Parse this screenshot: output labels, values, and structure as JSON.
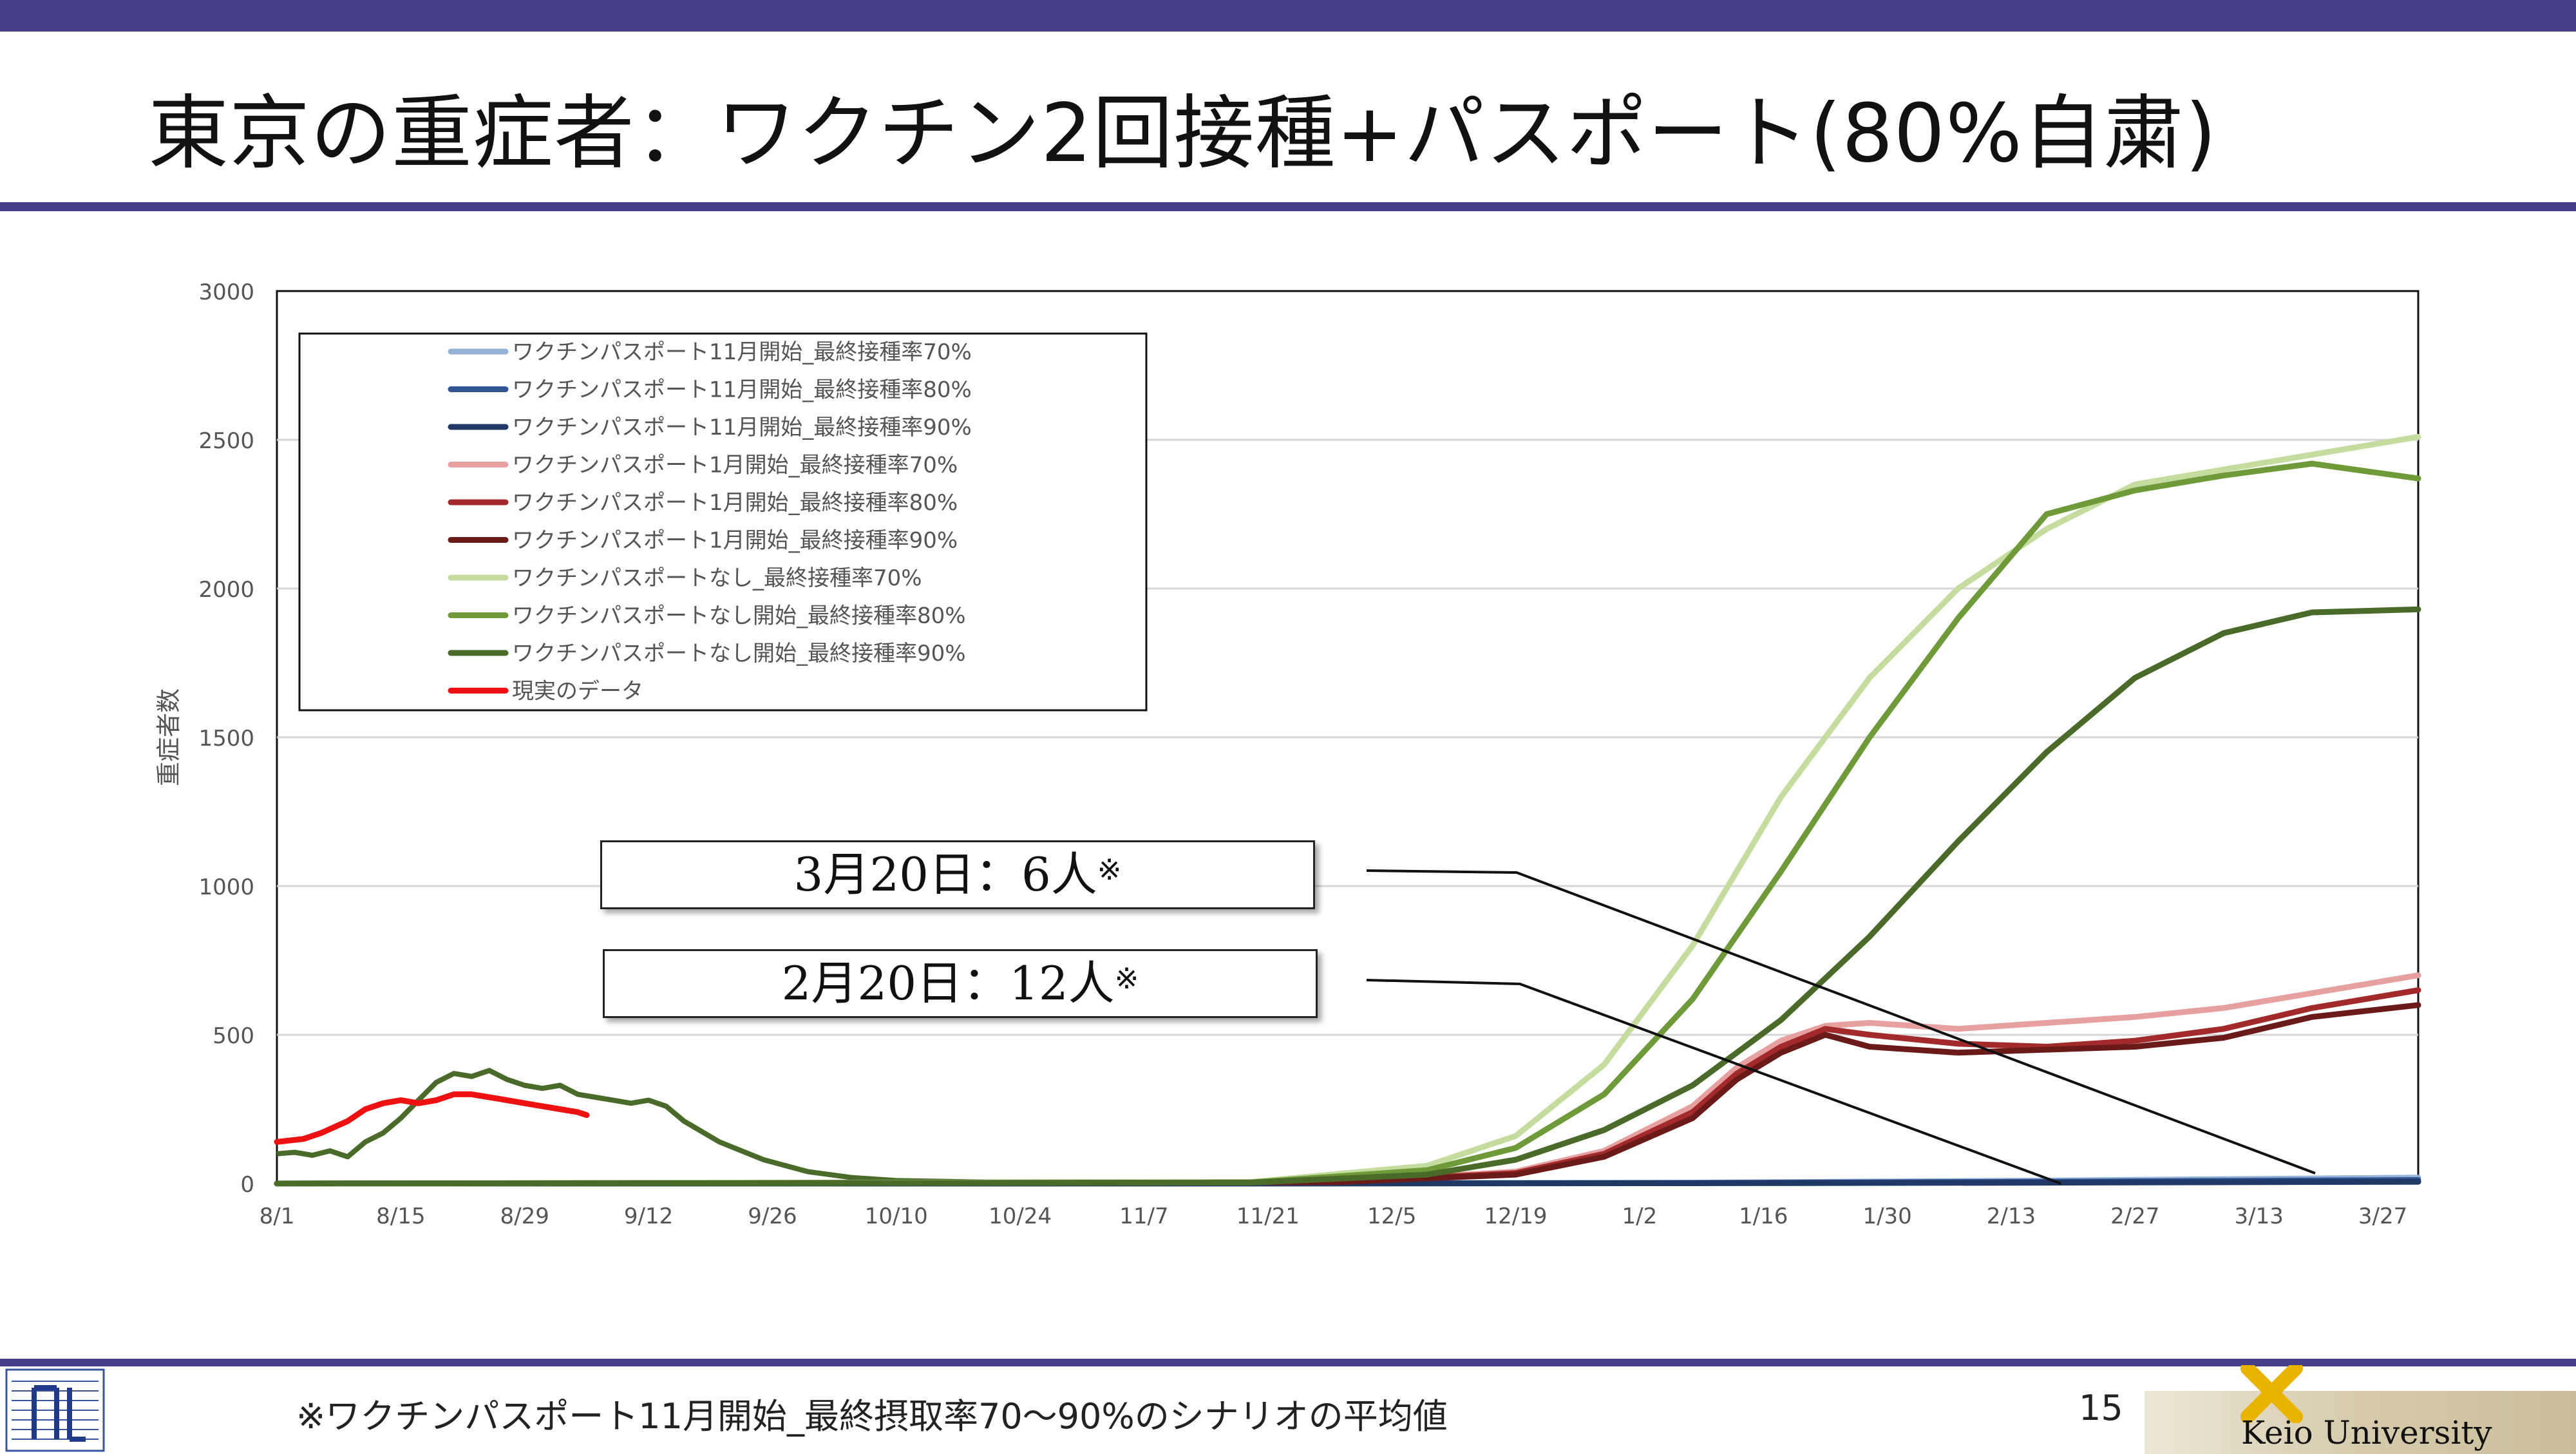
{
  "slide": {
    "title": "東京の重症者：ワクチン2回接種+パスポート(80%自粛)",
    "footnote": "※ワクチンパスポート11月開始_最終摂取率70～90%のシナリオの平均値",
    "page_number": "15",
    "university": "Keio University"
  },
  "annotations": [
    {
      "date_label": "3月20日：",
      "count_label": "6人",
      "mark": "※"
    },
    {
      "date_label": "2月20日：",
      "count_label": "12人",
      "mark": "※"
    }
  ],
  "chart_data": {
    "type": "line",
    "ylabel": "重症者数",
    "ylim": [
      0,
      3000
    ],
    "yticks": [
      0,
      500,
      1000,
      1500,
      2000,
      2500,
      3000
    ],
    "xticks": [
      "8/1",
      "8/15",
      "8/29",
      "9/12",
      "9/26",
      "10/10",
      "10/24",
      "11/7",
      "11/21",
      "12/5",
      "12/19",
      "1/2",
      "1/16",
      "1/30",
      "2/13",
      "2/27",
      "3/13",
      "3/27"
    ],
    "x_range_days": [
      0,
      242
    ],
    "grid": "horizontal",
    "legend_position": "top-left",
    "colors": {
      "blue_light": "#95b3d7",
      "blue_mid": "#2f5597",
      "blue_dark": "#1f3864",
      "red_light": "#e6a0a0",
      "red_mid": "#a32a2a",
      "red_dark": "#6b1a1a",
      "green_light": "#c4dc9e",
      "green_mid": "#6f9a3a",
      "green_dark": "#4a6a2a",
      "actual": "#ee1111"
    },
    "series": [
      {
        "name": "ワクチンパスポート11月開始_最終接種率70%",
        "color": "#95b3d7",
        "style": "solid",
        "x": [
          0,
          60,
          100,
          160,
          200,
          242
        ],
        "y": [
          0,
          0,
          0,
          3,
          10,
          20
        ]
      },
      {
        "name": "ワクチンパスポート11月開始_最終接種率80%",
        "color": "#2f5597",
        "style": "solid",
        "x": [
          0,
          60,
          100,
          160,
          200,
          242
        ],
        "y": [
          0,
          0,
          0,
          2,
          6,
          12
        ]
      },
      {
        "name": "ワクチンパスポート11月開始_最終接種率90%",
        "color": "#1f3864",
        "style": "solid",
        "x": [
          0,
          60,
          100,
          160,
          200,
          242
        ],
        "y": [
          0,
          0,
          0,
          1,
          3,
          6
        ]
      },
      {
        "name": "ワクチンパスポート1月開始_最終接種率70%",
        "color": "#e6a0a0",
        "style": "solid",
        "x": [
          0,
          120,
          140,
          150,
          160,
          165,
          170,
          175,
          180,
          190,
          200,
          210,
          220,
          230,
          242
        ],
        "y": [
          0,
          5,
          40,
          110,
          260,
          390,
          480,
          530,
          540,
          520,
          540,
          560,
          590,
          640,
          700
        ]
      },
      {
        "name": "ワクチンパスポート1月開始_最終接種率80%",
        "color": "#a32a2a",
        "style": "solid",
        "x": [
          0,
          120,
          140,
          150,
          160,
          165,
          170,
          175,
          180,
          190,
          200,
          210,
          220,
          230,
          242
        ],
        "y": [
          0,
          5,
          35,
          100,
          240,
          370,
          460,
          520,
          500,
          470,
          460,
          480,
          520,
          590,
          650
        ]
      },
      {
        "name": "ワクチンパスポート1月開始_最終接種率90%",
        "color": "#6b1a1a",
        "style": "solid",
        "x": [
          0,
          120,
          140,
          150,
          160,
          165,
          170,
          175,
          180,
          190,
          200,
          210,
          220,
          230,
          242
        ],
        "y": [
          0,
          5,
          30,
          90,
          220,
          350,
          440,
          500,
          460,
          440,
          450,
          460,
          490,
          560,
          600
        ]
      },
      {
        "name": "ワクチンパスポートなし_最終接種率70%",
        "color": "#c4dc9e",
        "style": "solid",
        "x": [
          0,
          110,
          130,
          140,
          150,
          160,
          170,
          180,
          190,
          200,
          210,
          220,
          230,
          242
        ],
        "y": [
          0,
          5,
          60,
          160,
          400,
          800,
          1300,
          1700,
          2000,
          2200,
          2350,
          2400,
          2450,
          2510
        ]
      },
      {
        "name": "ワクチンパスポートなし開始_最終接種率80%",
        "color": "#6f9a3a",
        "style": "solid",
        "x": [
          0,
          110,
          130,
          140,
          150,
          160,
          170,
          180,
          190,
          200,
          210,
          220,
          230,
          242
        ],
        "y": [
          0,
          4,
          45,
          120,
          300,
          620,
          1050,
          1500,
          1900,
          2250,
          2330,
          2380,
          2420,
          2370
        ]
      },
      {
        "name": "ワクチンパスポートなし開始_最終接種率90%",
        "color": "#4a6a2a",
        "style": "solid",
        "x": [
          0,
          110,
          130,
          140,
          150,
          160,
          170,
          180,
          190,
          200,
          210,
          220,
          230,
          242
        ],
        "y": [
          0,
          3,
          30,
          80,
          180,
          330,
          550,
          830,
          1150,
          1450,
          1700,
          1850,
          1920,
          1930
        ]
      },
      {
        "name": "現実のデータ",
        "color": "#ee1111",
        "style": "solid",
        "x": [
          0,
          3,
          5,
          8,
          10,
          12,
          14,
          16,
          18,
          20,
          22,
          24,
          26,
          28,
          30,
          32,
          34,
          35
        ],
        "y": [
          140,
          150,
          170,
          210,
          250,
          270,
          280,
          270,
          280,
          300,
          300,
          290,
          280,
          270,
          260,
          250,
          240,
          230
        ]
      }
    ],
    "unlabeled_series": [
      {
        "color": "#4a6a2a",
        "style": "solid",
        "x": [
          0,
          2,
          4,
          6,
          8,
          10,
          12,
          14,
          16,
          18,
          20,
          22,
          24,
          26,
          28,
          30,
          32,
          34,
          36,
          38,
          40,
          42,
          44,
          46,
          50,
          55,
          60,
          65,
          70,
          80,
          90,
          100,
          110,
          120
        ],
        "y": [
          100,
          105,
          95,
          110,
          90,
          140,
          170,
          220,
          280,
          340,
          370,
          360,
          380,
          350,
          330,
          320,
          330,
          300,
          290,
          280,
          270,
          280,
          260,
          210,
          140,
          80,
          40,
          20,
          10,
          5,
          3,
          3,
          3,
          3
        ]
      }
    ]
  }
}
